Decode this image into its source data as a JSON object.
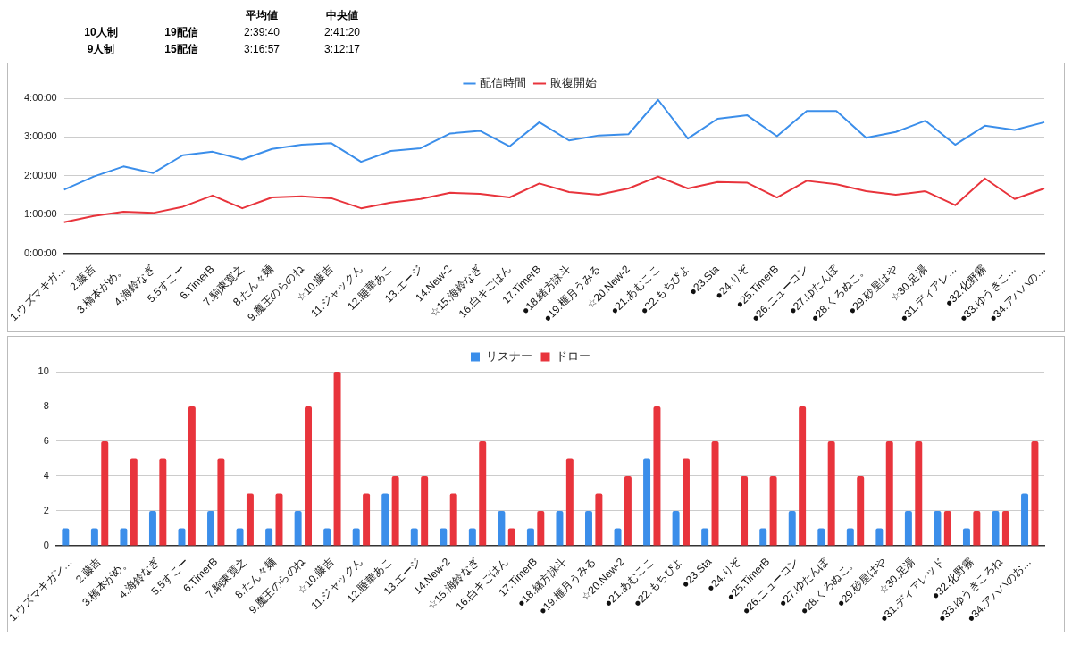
{
  "chart_data": [
    {
      "type": "other",
      "annotations": [
        "平均値",
        "中央値",
        "10人制",
        "19配信",
        "2:39:40",
        "2:41:20",
        "9人制",
        "15配信",
        "3:16:57",
        "3:12:17"
      ]
    },
    {
      "type": "line",
      "categories": [
        "1.ウズマキガ…",
        "2.藤吉",
        "3.橋本がめ。",
        "4.海鈴なぎ",
        "5.5すこー",
        "6.TimerB",
        "7.駒東寛之",
        "8.たん々麺",
        "9.魔王のらのね",
        "☆10.藤吉",
        "11.ジャックん",
        "12.睡華あこ",
        "13.エージ",
        "14.New-2",
        "☆15.海鈴なぎ",
        "16.白キごはん",
        "17.TimerB",
        "●18.緒方詠斗",
        "●19.榧月うみる",
        "☆20.New-2",
        "●21.あむここ",
        "●22.もちぴよ",
        "●23.Sta",
        "●24.りぞ",
        "●25.TimerB",
        "●26.ニューコン",
        "●27.ゆたんぽ",
        "●28.くろぬこ。",
        "●29.砂星はや",
        "☆30.足湯",
        "●31.ディアレ…",
        "●32.化野霧",
        "●33.ゆうきこ…",
        "●34.アハハの…"
      ],
      "series": [
        {
          "name": "配信時間",
          "color": "#3b8eea",
          "values": [
            1.64,
            1.98,
            2.24,
            2.07,
            2.53,
            2.62,
            2.42,
            2.69,
            2.8,
            2.84,
            2.36,
            2.64,
            2.71,
            3.09,
            3.16,
            2.76,
            3.38,
            2.91,
            3.04,
            3.07,
            3.96,
            2.96,
            3.47,
            3.56,
            3.02,
            3.67,
            3.67,
            2.98,
            3.13,
            3.42,
            2.8,
            3.29,
            3.18,
            3.38
          ]
        },
        {
          "name": "敗復開始",
          "color": "#e8343c",
          "values": [
            0.8,
            0.96,
            1.07,
            1.04,
            1.2,
            1.49,
            1.16,
            1.44,
            1.47,
            1.42,
            1.16,
            1.31,
            1.4,
            1.56,
            1.53,
            1.44,
            1.8,
            1.58,
            1.51,
            1.67,
            1.98,
            1.67,
            1.84,
            1.82,
            1.44,
            1.87,
            1.78,
            1.6,
            1.51,
            1.6,
            1.24,
            1.93,
            1.4,
            1.67
          ]
        }
      ],
      "ylim": [
        0,
        4
      ],
      "yticks": [
        {
          "value": 0,
          "label": "0:00:00"
        },
        {
          "value": 1,
          "label": "1:00:00"
        },
        {
          "value": 2,
          "label": "2:00:00"
        },
        {
          "value": 3,
          "label": "3:00:00"
        },
        {
          "value": 4,
          "label": "4:00:00"
        }
      ],
      "grid": "y",
      "legend": "top",
      "marker": "none",
      "line_style": "solid"
    },
    {
      "type": "bar",
      "categories": [
        "1.ウズマキガン…",
        "2.藤吉",
        "3.橋本がめ。",
        "4.海鈴なぎ",
        "5.5すこー",
        "6.TimerB",
        "7.駒東寛之",
        "8.たん々麺",
        "9.魔王のらのね",
        "☆10.藤吉",
        "11.ジャックん",
        "12.睡華あこ",
        "13.エージ",
        "14.New-2",
        "☆15.海鈴なぎ",
        "16.白キごはん",
        "17.TimerB",
        "●18.緒方詠斗",
        "●19.榧月うみる",
        "☆20.New-2",
        "●21.あむここ",
        "●22.もちぴよ",
        "●23.Sta",
        "●24.りぞ",
        "●25.TimerB",
        "●26.ニューコン",
        "●27.ゆたんぽ",
        "●28.くろぬこ。",
        "●29.砂星はや",
        "☆30.足湯",
        "●31.ディアレッド",
        "●32.化野霧",
        "●33.ゆうきころね",
        "●34.アハハのお…"
      ],
      "series": [
        {
          "name": "リスナー",
          "color": "#3b8eea",
          "values": [
            1,
            1,
            1,
            2,
            1,
            2,
            1,
            1,
            2,
            1,
            1,
            3,
            1,
            1,
            1,
            2,
            1,
            2,
            2,
            1,
            5,
            2,
            1,
            0,
            1,
            2,
            1,
            1,
            1,
            2,
            2,
            1,
            2,
            3
          ]
        },
        {
          "name": "ドロー",
          "color": "#e8343c",
          "values": [
            0,
            6,
            5,
            5,
            8,
            5,
            3,
            3,
            8,
            10,
            3,
            4,
            4,
            3,
            6,
            1,
            2,
            5,
            3,
            4,
            8,
            5,
            6,
            4,
            4,
            8,
            6,
            4,
            6,
            6,
            2,
            2,
            2,
            6
          ]
        }
      ],
      "ylim": [
        0,
        10
      ],
      "yticks": [
        0,
        2,
        4,
        6,
        8,
        10
      ],
      "grid": "y",
      "legend": "top"
    }
  ]
}
